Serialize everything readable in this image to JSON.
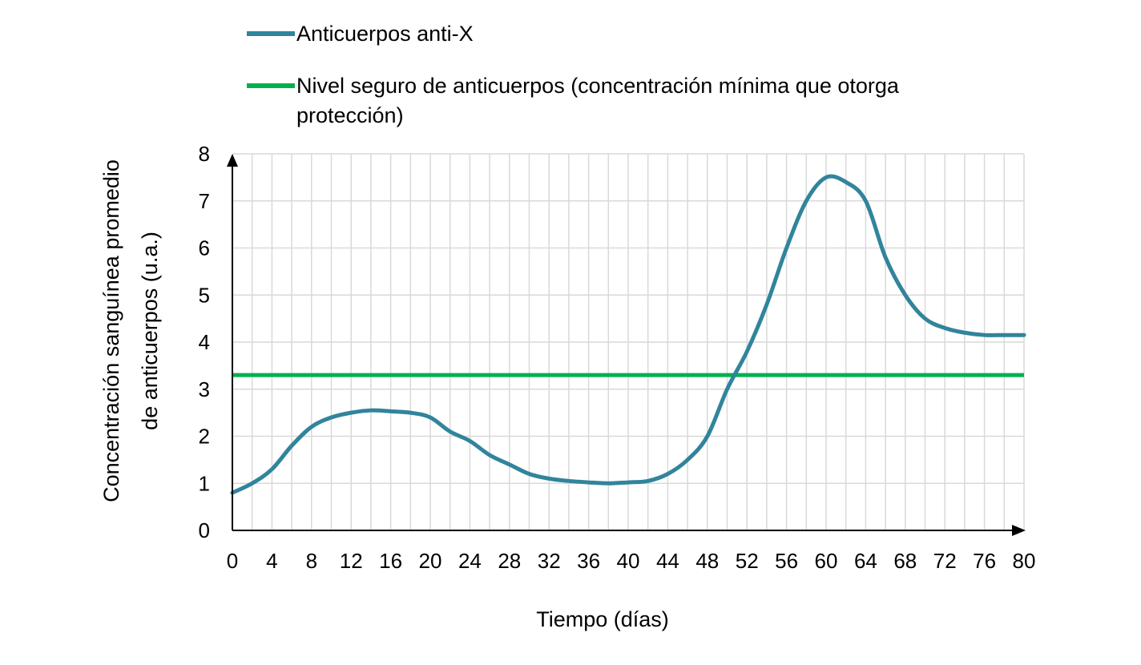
{
  "chart_data": {
    "type": "line",
    "title": "",
    "xlabel": "Tiempo (días)",
    "ylabel_lines": [
      "Concentración sanguínea promedio",
      "de anticuerpos (u.a.)"
    ],
    "xlim": [
      0,
      80
    ],
    "ylim": [
      0,
      8
    ],
    "x_ticks": [
      0,
      4,
      8,
      12,
      16,
      20,
      24,
      28,
      32,
      36,
      40,
      44,
      48,
      52,
      56,
      60,
      64,
      68,
      72,
      76,
      80
    ],
    "y_ticks": [
      0,
      1,
      2,
      3,
      4,
      5,
      6,
      7,
      8
    ],
    "grid": true,
    "legend_position": "top",
    "series": [
      {
        "name": "Anticuerpos anti-X",
        "color": "#31849b",
        "x": [
          0,
          2,
          4,
          6,
          8,
          10,
          12,
          14,
          16,
          18,
          20,
          22,
          24,
          26,
          28,
          30,
          32,
          34,
          36,
          38,
          40,
          42,
          44,
          46,
          48,
          50,
          52,
          54,
          56,
          58,
          60,
          62,
          64,
          66,
          68,
          70,
          72,
          74,
          76,
          78,
          80
        ],
        "y": [
          0.8,
          1.0,
          1.3,
          1.8,
          2.2,
          2.4,
          2.5,
          2.55,
          2.53,
          2.5,
          2.4,
          2.1,
          1.9,
          1.6,
          1.4,
          1.2,
          1.1,
          1.05,
          1.02,
          1.0,
          1.02,
          1.05,
          1.2,
          1.5,
          2.0,
          3.0,
          3.8,
          4.8,
          6.0,
          7.0,
          7.5,
          7.4,
          7.0,
          5.8,
          5.0,
          4.5,
          4.3,
          4.2,
          4.15,
          4.15,
          4.15
        ]
      },
      {
        "name_lines": [
          "Nivel seguro de anticuerpos (concentración mínima que otorga",
          "protección)"
        ],
        "color": "#00b050",
        "x": [
          0,
          80
        ],
        "y": [
          3.3,
          3.3
        ]
      }
    ]
  }
}
